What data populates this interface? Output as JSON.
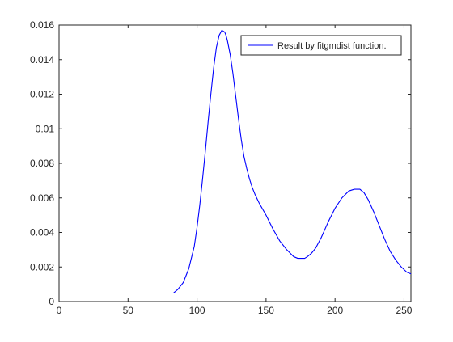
{
  "chart_data": {
    "type": "line",
    "title": "",
    "xlabel": "",
    "ylabel": "",
    "xlim": [
      0,
      255
    ],
    "ylim": [
      0,
      0.016
    ],
    "x_ticks": [
      0,
      50,
      100,
      150,
      200,
      250
    ],
    "x_tick_labels": [
      "0",
      "50",
      "100",
      "150",
      "200",
      "250"
    ],
    "y_ticks": [
      0,
      0.002,
      0.004,
      0.006,
      0.008,
      0.01,
      0.012,
      0.014,
      0.016
    ],
    "y_tick_labels": [
      "0",
      "0.002",
      "0.004",
      "0.006",
      "0.008",
      "0.01",
      "0.012",
      "0.014",
      "0.016"
    ],
    "grid": false,
    "legend_position": "top-right",
    "series": [
      {
        "name": "Result by fitgmdist function.",
        "color": "#0000ff",
        "x": [
          83,
          86,
          90,
          94,
          98,
          100,
          102,
          104,
          106,
          108,
          110,
          112,
          114,
          116,
          118,
          120,
          121,
          122,
          124,
          126,
          128,
          130,
          132,
          134,
          136,
          138,
          140,
          142,
          145,
          150,
          155,
          160,
          165,
          170,
          173,
          176,
          178,
          180,
          183,
          186,
          190,
          195,
          200,
          205,
          210,
          214,
          218,
          221,
          224,
          228,
          232,
          236,
          240,
          244,
          248,
          252,
          255
        ],
        "y": [
          0.0005,
          0.0007,
          0.0011,
          0.0019,
          0.0032,
          0.0043,
          0.0056,
          0.0071,
          0.0087,
          0.0104,
          0.012,
          0.0135,
          0.0147,
          0.0154,
          0.0157,
          0.0156,
          0.0154,
          0.0151,
          0.0143,
          0.0132,
          0.0119,
          0.0106,
          0.0094,
          0.0084,
          0.0077,
          0.0071,
          0.0066,
          0.0062,
          0.0057,
          0.005,
          0.0042,
          0.0035,
          0.003,
          0.0026,
          0.0025,
          0.0025,
          0.0025,
          0.0026,
          0.0028,
          0.0031,
          0.0037,
          0.0046,
          0.0054,
          0.006,
          0.0064,
          0.0065,
          0.0065,
          0.0063,
          0.0059,
          0.0052,
          0.0044,
          0.0036,
          0.0029,
          0.0024,
          0.002,
          0.0017,
          0.0016
        ]
      }
    ]
  }
}
